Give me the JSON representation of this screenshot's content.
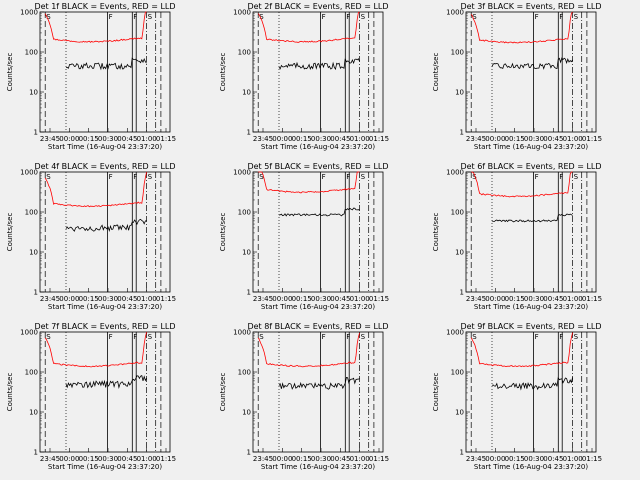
{
  "chart_data": [
    {
      "type": "line",
      "title": "Det 1f BLACK = Events, RED = LLD",
      "ylabel": "Counts/sec",
      "xlabel": "Start Time (16-Aug-04 23:37:20)",
      "x_ticks": [
        "23:45",
        "00:00",
        "00:15",
        "00:30",
        "00:45",
        "01:00",
        "01:15"
      ],
      "y_scale": "log",
      "ylim": [
        1,
        1000
      ],
      "y_ticks": [
        "1",
        "10",
        "100",
        "1000"
      ],
      "markers": {
        "dashed": [
          0.04,
          0.93
        ],
        "dotted": [
          0.2
        ],
        "solid": [
          0.52,
          0.71,
          0.74
        ],
        "dashdot": [
          0.82,
          0.89
        ],
        "labels": [
          {
            "text": "S",
            "at": 0.04
          },
          {
            "text": "F",
            "at": 0.52
          },
          {
            "text": "F",
            "at": 0.71
          },
          {
            "text": "S",
            "at": 0.82
          }
        ]
      },
      "series": [
        {
          "color": "#ff0000",
          "start": 0.04,
          "end": 0.82,
          "level": 220,
          "extra": "spike_end"
        },
        {
          "color": "#000000",
          "start": 0.2,
          "end": 0.82,
          "level": 45,
          "noise": 0.35
        }
      ]
    },
    {
      "type": "line",
      "title": "Det 2f BLACK = Events, RED = LLD",
      "ylabel": "Counts/sec",
      "xlabel": "Start Time (16-Aug-04 23:37:20)",
      "x_ticks": [
        "23:45",
        "00:00",
        "00:15",
        "00:30",
        "00:45",
        "01:00",
        "01:15"
      ],
      "y_scale": "log",
      "ylim": [
        1,
        1000
      ],
      "y_ticks": [
        "1",
        "10",
        "100",
        "1000"
      ],
      "markers": {
        "dashed": [
          0.04,
          0.93
        ],
        "dotted": [
          0.2
        ],
        "solid": [
          0.52,
          0.71,
          0.74
        ],
        "dashdot": [
          0.82,
          0.89
        ],
        "labels": [
          {
            "text": "S",
            "at": 0.04
          },
          {
            "text": "F",
            "at": 0.52
          },
          {
            "text": "F",
            "at": 0.71
          },
          {
            "text": "S",
            "at": 0.82
          }
        ]
      },
      "series": [
        {
          "color": "#ff0000",
          "start": 0.04,
          "end": 0.82,
          "level": 220,
          "extra": "spike_end"
        },
        {
          "color": "#000000",
          "start": 0.2,
          "end": 0.82,
          "level": 45,
          "noise": 0.35
        }
      ]
    },
    {
      "type": "line",
      "title": "Det 3f BLACK = Events, RED = LLD",
      "ylabel": "Counts/sec",
      "xlabel": "Start Time (16-Aug-04 23:37:20)",
      "x_ticks": [
        "23:45",
        "00:00",
        "00:15",
        "00:30",
        "00:45",
        "01:00",
        "01:15"
      ],
      "y_scale": "log",
      "ylim": [
        1,
        1000
      ],
      "y_ticks": [
        "1",
        "10",
        "100",
        "1000"
      ],
      "markers": {
        "dashed": [
          0.04,
          0.93
        ],
        "dotted": [
          0.2
        ],
        "solid": [
          0.52,
          0.71,
          0.74
        ],
        "dashdot": [
          0.82,
          0.89
        ],
        "labels": [
          {
            "text": "S",
            "at": 0.04
          },
          {
            "text": "F",
            "at": 0.52
          },
          {
            "text": "F",
            "at": 0.71
          },
          {
            "text": "S",
            "at": 0.82
          }
        ]
      },
      "series": [
        {
          "color": "#ff0000",
          "start": 0.04,
          "end": 0.82,
          "level": 210,
          "extra": "spike_end"
        },
        {
          "color": "#000000",
          "start": 0.2,
          "end": 0.82,
          "level": 45,
          "noise": 0.3
        }
      ]
    },
    {
      "type": "line",
      "title": "Det 4f BLACK = Events, RED = LLD",
      "ylabel": "Counts/sec",
      "xlabel": "Start Time (16-Aug-04 23:37:20)",
      "x_ticks": [
        "23:45",
        "00:00",
        "00:15",
        "00:30",
        "00:45",
        "01:00",
        "01:15"
      ],
      "y_scale": "log",
      "ylim": [
        1,
        1000
      ],
      "y_ticks": [
        "1",
        "10",
        "100",
        "1000"
      ],
      "markers": {
        "dashed": [
          0.04,
          0.93
        ],
        "dotted": [
          0.2
        ],
        "solid": [
          0.52,
          0.71,
          0.74
        ],
        "dashdot": [
          0.82,
          0.89
        ],
        "labels": [
          {
            "text": "S",
            "at": 0.04
          },
          {
            "text": "F",
            "at": 0.52
          },
          {
            "text": "F",
            "at": 0.71
          },
          {
            "text": "S",
            "at": 0.82
          }
        ]
      },
      "series": [
        {
          "color": "#ff0000",
          "start": 0.04,
          "end": 0.82,
          "level": 170,
          "extra": "spike_end"
        },
        {
          "color": "#000000",
          "start": 0.2,
          "end": 0.82,
          "level": 40,
          "noise": 0.35
        }
      ]
    },
    {
      "type": "line",
      "title": "Det 5f BLACK = Events, RED = LLD",
      "ylabel": "Counts/sec",
      "xlabel": "Start Time (16-Aug-04 23:37:20)",
      "x_ticks": [
        "23:45",
        "00:00",
        "00:15",
        "00:30",
        "00:45",
        "01:00",
        "01:15"
      ],
      "y_scale": "log",
      "ylim": [
        1,
        1000
      ],
      "y_ticks": [
        "1",
        "10",
        "100",
        "1000"
      ],
      "markers": {
        "dashed": [
          0.04,
          0.93
        ],
        "dotted": [
          0.2
        ],
        "solid": [
          0.52,
          0.71,
          0.74
        ],
        "dashdot": [
          0.82,
          0.89
        ],
        "labels": [
          {
            "text": "S",
            "at": 0.04
          },
          {
            "text": "F",
            "at": 0.52
          },
          {
            "text": "F",
            "at": 0.71
          },
          {
            "text": "S",
            "at": 0.82
          }
        ]
      },
      "series": [
        {
          "color": "#ff0000",
          "start": 0.04,
          "end": 0.82,
          "level": 380,
          "extra": "spike_end"
        },
        {
          "color": "#000000",
          "start": 0.2,
          "end": 0.82,
          "level": 85,
          "noise": 0.12
        }
      ]
    },
    {
      "type": "line",
      "title": "Det 6f BLACK = Events, RED = LLD",
      "ylabel": "Counts/sec",
      "xlabel": "Start Time (16-Aug-04 23:37:20)",
      "x_ticks": [
        "23:45",
        "00:00",
        "00:15",
        "00:30",
        "00:45",
        "01:00",
        "01:15"
      ],
      "y_scale": "log",
      "ylim": [
        1,
        1000
      ],
      "y_ticks": [
        "1",
        "10",
        "100",
        "1000"
      ],
      "markers": {
        "dashed": [
          0.04,
          0.93
        ],
        "dotted": [
          0.2
        ],
        "solid": [
          0.52,
          0.71,
          0.74
        ],
        "dashdot": [
          0.82,
          0.89
        ],
        "labels": [
          {
            "text": "S",
            "at": 0.04
          },
          {
            "text": "F",
            "at": 0.52
          },
          {
            "text": "F",
            "at": 0.71
          },
          {
            "text": "S",
            "at": 0.82
          }
        ]
      },
      "series": [
        {
          "color": "#ff0000",
          "start": 0.04,
          "end": 0.82,
          "level": 300,
          "extra": "spike_end"
        },
        {
          "color": "#000000",
          "start": 0.2,
          "end": 0.82,
          "level": 60,
          "noise": 0.12
        }
      ]
    },
    {
      "type": "line",
      "title": "Det 7f BLACK = Events, RED = LLD",
      "ylabel": "Counts/sec",
      "xlabel": "Start Time (16-Aug-04 23:37:20)",
      "x_ticks": [
        "23:45",
        "00:00",
        "00:15",
        "00:30",
        "00:45",
        "01:00",
        "01:15"
      ],
      "y_scale": "log",
      "ylim": [
        1,
        1000
      ],
      "y_ticks": [
        "1",
        "10",
        "100",
        "1000"
      ],
      "markers": {
        "dashed": [
          0.04,
          0.93
        ],
        "dotted": [
          0.2
        ],
        "solid": [
          0.52,
          0.71,
          0.74
        ],
        "dashdot": [
          0.82,
          0.89
        ],
        "labels": [
          {
            "text": "S",
            "at": 0.04
          },
          {
            "text": "F",
            "at": 0.52
          },
          {
            "text": "F",
            "at": 0.71
          },
          {
            "text": "S",
            "at": 0.82
          }
        ]
      },
      "series": [
        {
          "color": "#ff0000",
          "start": 0.04,
          "end": 0.82,
          "level": 170,
          "extra": "spike_end"
        },
        {
          "color": "#000000",
          "start": 0.2,
          "end": 0.82,
          "level": 50,
          "noise": 0.35
        }
      ]
    },
    {
      "type": "line",
      "title": "Det 8f BLACK = Events, RED = LLD",
      "ylabel": "Counts/sec",
      "xlabel": "Start Time (16-Aug-04 23:37:20)",
      "x_ticks": [
        "23:45",
        "00:00",
        "00:15",
        "00:30",
        "00:45",
        "01:00",
        "01:15"
      ],
      "y_scale": "log",
      "ylim": [
        1,
        1000
      ],
      "y_ticks": [
        "1",
        "10",
        "100",
        "1000"
      ],
      "markers": {
        "dashed": [
          0.04,
          0.93
        ],
        "dotted": [
          0.2
        ],
        "solid": [
          0.52,
          0.71,
          0.74
        ],
        "dashdot": [
          0.82,
          0.89
        ],
        "labels": [
          {
            "text": "S",
            "at": 0.04
          },
          {
            "text": "F",
            "at": 0.52
          },
          {
            "text": "F",
            "at": 0.71
          },
          {
            "text": "S",
            "at": 0.82
          }
        ]
      },
      "series": [
        {
          "color": "#ff0000",
          "start": 0.04,
          "end": 0.82,
          "level": 170,
          "extra": "spike_end"
        },
        {
          "color": "#000000",
          "start": 0.2,
          "end": 0.82,
          "level": 45,
          "noise": 0.35
        }
      ]
    },
    {
      "type": "line",
      "title": "Det 9f BLACK = Events, RED = LLD",
      "ylabel": "Counts/sec",
      "xlabel": "Start Time (16-Aug-04 23:37:20)",
      "x_ticks": [
        "23:45",
        "00:00",
        "00:15",
        "00:30",
        "00:45",
        "01:00",
        "01:15"
      ],
      "y_scale": "log",
      "ylim": [
        1,
        1000
      ],
      "y_ticks": [
        "1",
        "10",
        "100",
        "1000"
      ],
      "markers": {
        "dashed": [
          0.04,
          0.93
        ],
        "dotted": [
          0.2
        ],
        "solid": [
          0.52,
          0.71,
          0.74
        ],
        "dashdot": [
          0.82,
          0.89
        ],
        "labels": [
          {
            "text": "S",
            "at": 0.04
          },
          {
            "text": "F",
            "at": 0.52
          },
          {
            "text": "F",
            "at": 0.71
          },
          {
            "text": "S",
            "at": 0.82
          }
        ]
      },
      "series": [
        {
          "color": "#ff0000",
          "start": 0.04,
          "end": 0.82,
          "level": 170,
          "extra": "spike_end"
        },
        {
          "color": "#000000",
          "start": 0.2,
          "end": 0.82,
          "level": 45,
          "noise": 0.35
        }
      ]
    }
  ]
}
